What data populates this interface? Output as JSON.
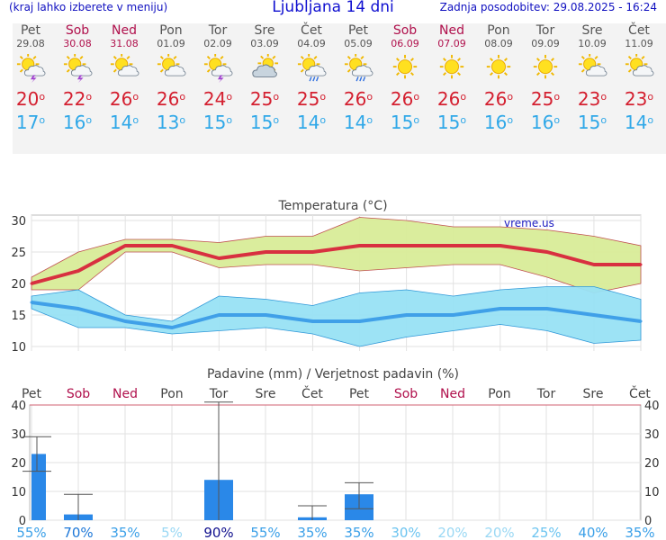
{
  "header": {
    "menu_hint": "(kraj lahko izberete v meniju)",
    "title": "Ljubljana 14 dni",
    "updated": "Zadnja posodobitev: 29.08.2025 - 16:24"
  },
  "days": [
    {
      "name": "Pet",
      "date": "29.08",
      "weekend": false,
      "icon": "sun-cloud-storm-icon",
      "tmax": "20",
      "tmin": "17"
    },
    {
      "name": "Sob",
      "date": "30.08",
      "weekend": true,
      "icon": "sun-cloud-storm-icon",
      "tmax": "22",
      "tmin": "16"
    },
    {
      "name": "Ned",
      "date": "31.08",
      "weekend": true,
      "icon": "sun-cloud-icon",
      "tmax": "26",
      "tmin": "14"
    },
    {
      "name": "Pon",
      "date": "01.09",
      "weekend": false,
      "icon": "sun-cloud-icon",
      "tmax": "26",
      "tmin": "13"
    },
    {
      "name": "Tor",
      "date": "02.09",
      "weekend": false,
      "icon": "sun-cloud-storm-icon",
      "tmax": "24",
      "tmin": "15"
    },
    {
      "name": "Sre",
      "date": "03.09",
      "weekend": false,
      "icon": "cloud-sun-icon",
      "tmax": "25",
      "tmin": "15"
    },
    {
      "name": "Čet",
      "date": "04.09",
      "weekend": false,
      "icon": "sun-cloud-rain-icon",
      "tmax": "25",
      "tmin": "14"
    },
    {
      "name": "Pet",
      "date": "05.09",
      "weekend": false,
      "icon": "sun-cloud-rain-icon",
      "tmax": "26",
      "tmin": "14"
    },
    {
      "name": "Sob",
      "date": "06.09",
      "weekend": true,
      "icon": "sun-icon",
      "tmax": "26",
      "tmin": "15"
    },
    {
      "name": "Ned",
      "date": "07.09",
      "weekend": true,
      "icon": "sun-icon",
      "tmax": "26",
      "tmin": "15"
    },
    {
      "name": "Pon",
      "date": "08.09",
      "weekend": false,
      "icon": "sun-icon",
      "tmax": "26",
      "tmin": "16"
    },
    {
      "name": "Tor",
      "date": "09.09",
      "weekend": false,
      "icon": "sun-icon",
      "tmax": "25",
      "tmin": "16"
    },
    {
      "name": "Sre",
      "date": "10.09",
      "weekend": false,
      "icon": "sun-cloud-icon",
      "tmax": "23",
      "tmin": "15"
    },
    {
      "name": "Čet",
      "date": "11.09",
      "weekend": false,
      "icon": "sun-cloud-icon",
      "tmax": "23",
      "tmin": "14"
    }
  ],
  "chart_data": [
    {
      "type": "line",
      "title": "Temperatura (°C)",
      "watermark": "vreme.us",
      "ylim": [
        10,
        30
      ],
      "yticks": [
        "10",
        "15",
        "20",
        "25",
        "30"
      ],
      "series": [
        {
          "name": "max",
          "color": "#d83040",
          "values": [
            20,
            22,
            26,
            26,
            24,
            25,
            25,
            26,
            26,
            26,
            26,
            25,
            23,
            23
          ],
          "band_upper": [
            21,
            25,
            27,
            27,
            26.5,
            27.5,
            27.5,
            30.5,
            30,
            29,
            29,
            28.5,
            27.5,
            26
          ],
          "band_lower": [
            19,
            19,
            25,
            25,
            22.5,
            23,
            23,
            22,
            22.5,
            23,
            23,
            21,
            18.5,
            20
          ]
        },
        {
          "name": "min",
          "color": "#40a0e8",
          "values": [
            17,
            16,
            14,
            13,
            15,
            15,
            14,
            14,
            15,
            15,
            16,
            16,
            15,
            14
          ],
          "band_upper": [
            18,
            19,
            15,
            14,
            18,
            17.5,
            16.5,
            18.5,
            19,
            18,
            19,
            19.5,
            19.5,
            17.5
          ],
          "band_lower": [
            16,
            13,
            13,
            12,
            12.5,
            13,
            12,
            10,
            11.5,
            12.5,
            13.5,
            12.5,
            10.5,
            11
          ]
        }
      ]
    },
    {
      "type": "bar",
      "title": "Padavine (mm) / Verjetnost padavin (%)",
      "ylim": [
        0,
        40
      ],
      "yticks": [
        "0",
        "10",
        "20",
        "30",
        "40"
      ],
      "categories": [
        "Pet",
        "Sob",
        "Ned",
        "Pon",
        "Tor",
        "Sre",
        "Čet",
        "Pet",
        "Sob",
        "Ned",
        "Pon",
        "Tor",
        "Sre",
        "Čet"
      ],
      "category_weekend": [
        false,
        true,
        true,
        false,
        false,
        false,
        false,
        false,
        true,
        true,
        false,
        false,
        false,
        false
      ],
      "values": [
        23,
        2,
        0,
        0,
        14,
        0,
        1,
        9,
        0,
        0,
        0,
        0,
        0,
        0
      ],
      "err_low": [
        17,
        0,
        0,
        0,
        0,
        0,
        0,
        4,
        0,
        0,
        0,
        0,
        0,
        0
      ],
      "err_high": [
        29,
        9,
        0,
        0,
        41,
        0,
        5,
        13,
        0,
        0,
        0,
        0,
        0,
        0
      ],
      "probability": [
        "55%",
        "70%",
        "35%",
        "5%",
        "90%",
        "55%",
        "35%",
        "35%",
        "30%",
        "20%",
        "20%",
        "25%",
        "40%",
        "35%"
      ]
    }
  ],
  "colors": {
    "weekend": "#b0104c",
    "max_band": "#d8ec98",
    "min_band": "#98e2f4",
    "bar": "#2a88e8",
    "probability": [
      "#3ba0e8",
      "#1e78d8",
      "#3ba0e8",
      "#9ad8f4",
      "#10108e",
      "#3ba0e8",
      "#3ba0e8",
      "#3ba0e8",
      "#6cc4f0",
      "#9ad8f4",
      "#9ad8f4",
      "#6cc4f0",
      "#3ba0e8",
      "#3ba0e8"
    ]
  }
}
